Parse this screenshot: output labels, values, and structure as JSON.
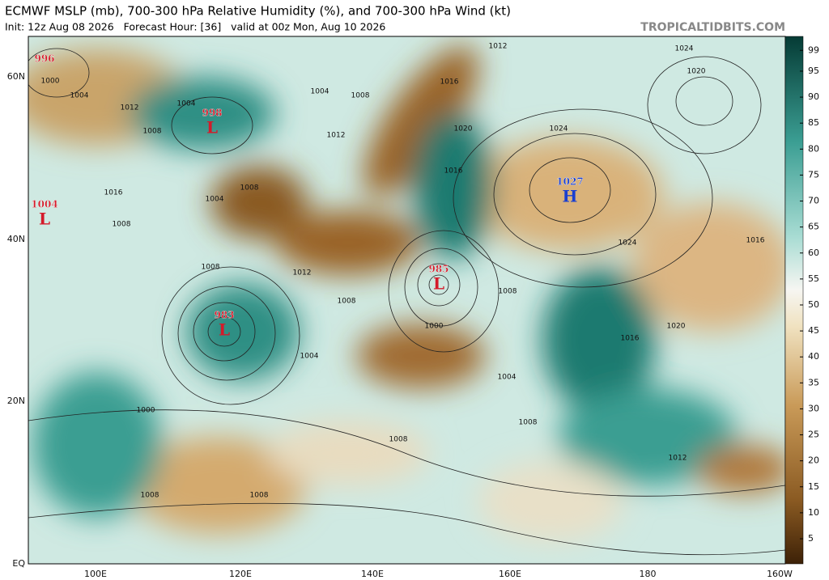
{
  "header": {
    "title": "ECMWF MSLP (mb), 700-300 hPa Relative Humidity (%), and 700-300 hPa Wind (kt)",
    "subtitle": "Init: 12z Aug 08 2026   Forecast Hour: [36]   valid at 00z Mon, Aug 10 2026",
    "credit": "TROPICALTIDBITS.COM"
  },
  "map": {
    "lat_labels": [
      "60N",
      "40N",
      "20N",
      "EQ"
    ],
    "lon_labels": [
      "100E",
      "120E",
      "140E",
      "160E",
      "180",
      "160W"
    ],
    "centers": [
      {
        "pressure": 996
      },
      {
        "pressure": 998,
        "symbol": "L"
      },
      {
        "pressure": 1004,
        "symbol": "L"
      },
      {
        "pressure": 983,
        "symbol": "L"
      },
      {
        "pressure": 985,
        "symbol": "L"
      },
      {
        "pressure": 1027,
        "symbol": "H"
      }
    ],
    "isobar_labels": [
      1000,
      1004,
      1012,
      1004,
      1008,
      1004,
      1008,
      1012,
      1012,
      1016,
      1020,
      1024,
      1024,
      1020,
      1016,
      1008,
      1004,
      1008,
      1016,
      1008,
      1012,
      1008,
      1000,
      1004,
      1008,
      1004,
      1008,
      1016,
      1020,
      1024,
      1016,
      1008,
      1000,
      1008,
      1008,
      1012
    ]
  },
  "colorbar": {
    "ticks": [
      5,
      10,
      15,
      20,
      25,
      30,
      35,
      40,
      45,
      50,
      55,
      60,
      65,
      70,
      75,
      80,
      85,
      90,
      95,
      99
    ]
  }
}
